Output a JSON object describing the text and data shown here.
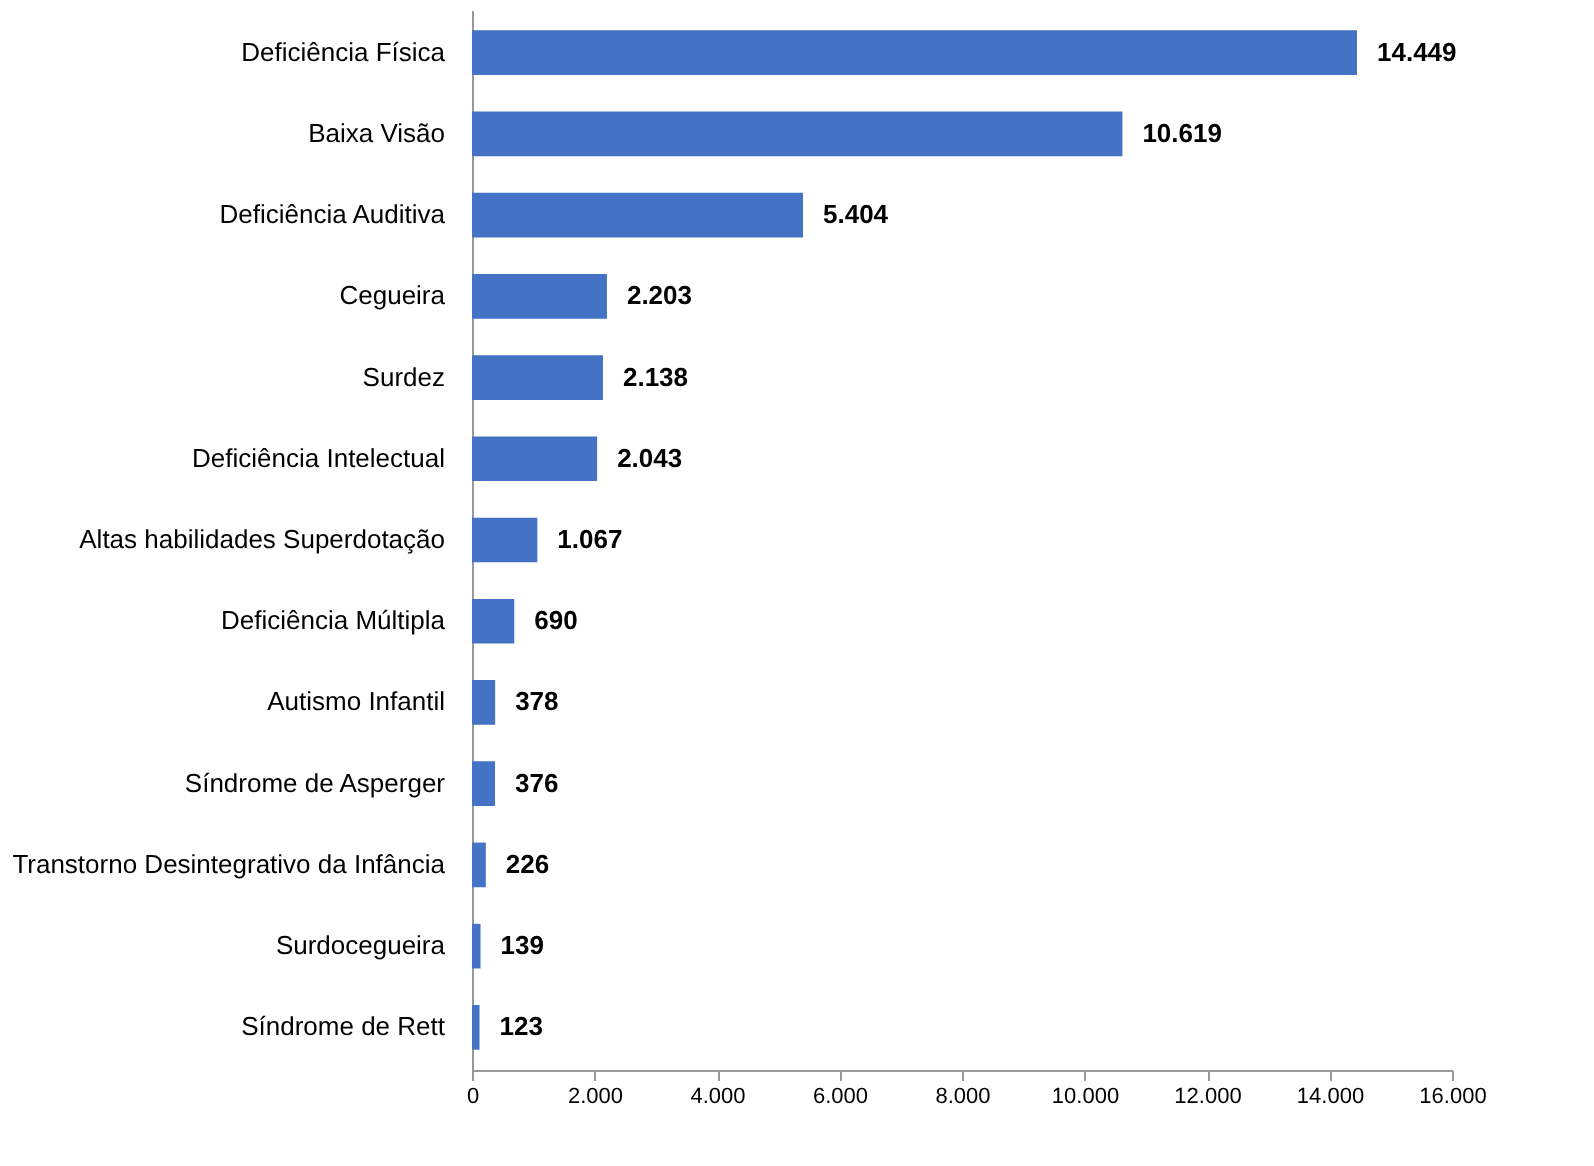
{
  "chart_data": {
    "type": "bar",
    "orientation": "horizontal",
    "categories": [
      "Deficiência Física",
      "Baixa Visão",
      "Deficiência Auditiva",
      "Cegueira",
      "Surdez",
      "Deficiência Intelectual",
      "Altas habilidades Superdotação",
      "Deficiência Múltipla",
      "Autismo Infantil",
      "Síndrome de Asperger",
      "Transtorno Desintegrativo da Infância",
      "Surdocegueira",
      "Síndrome de Rett"
    ],
    "values": [
      14449,
      10619,
      5404,
      2203,
      2138,
      2043,
      1067,
      690,
      378,
      376,
      226,
      139,
      123
    ],
    "value_labels": [
      "14.449",
      "10.619",
      "5.404",
      "2.203",
      "2.138",
      "2.043",
      "1.067",
      "690",
      "378",
      "376",
      "226",
      "139",
      "123"
    ],
    "color": "#4472c4",
    "xlim": [
      0,
      16000
    ],
    "xticks": [
      0,
      {
        "value": 2000,
        "label": "2.000"
      },
      {
        "value": 4000,
        "label": "4.000"
      },
      {
        "value": 6000,
        "label": "6.000"
      },
      {
        "value": 8000,
        "label": "8.000"
      },
      {
        "value": 10000,
        "label": "10.000"
      },
      {
        "value": 12000,
        "label": "12.000"
      },
      {
        "value": 14000,
        "label": "14.000"
      },
      {
        "value": 16000,
        "label": "16.000"
      }
    ],
    "grid": false
  }
}
